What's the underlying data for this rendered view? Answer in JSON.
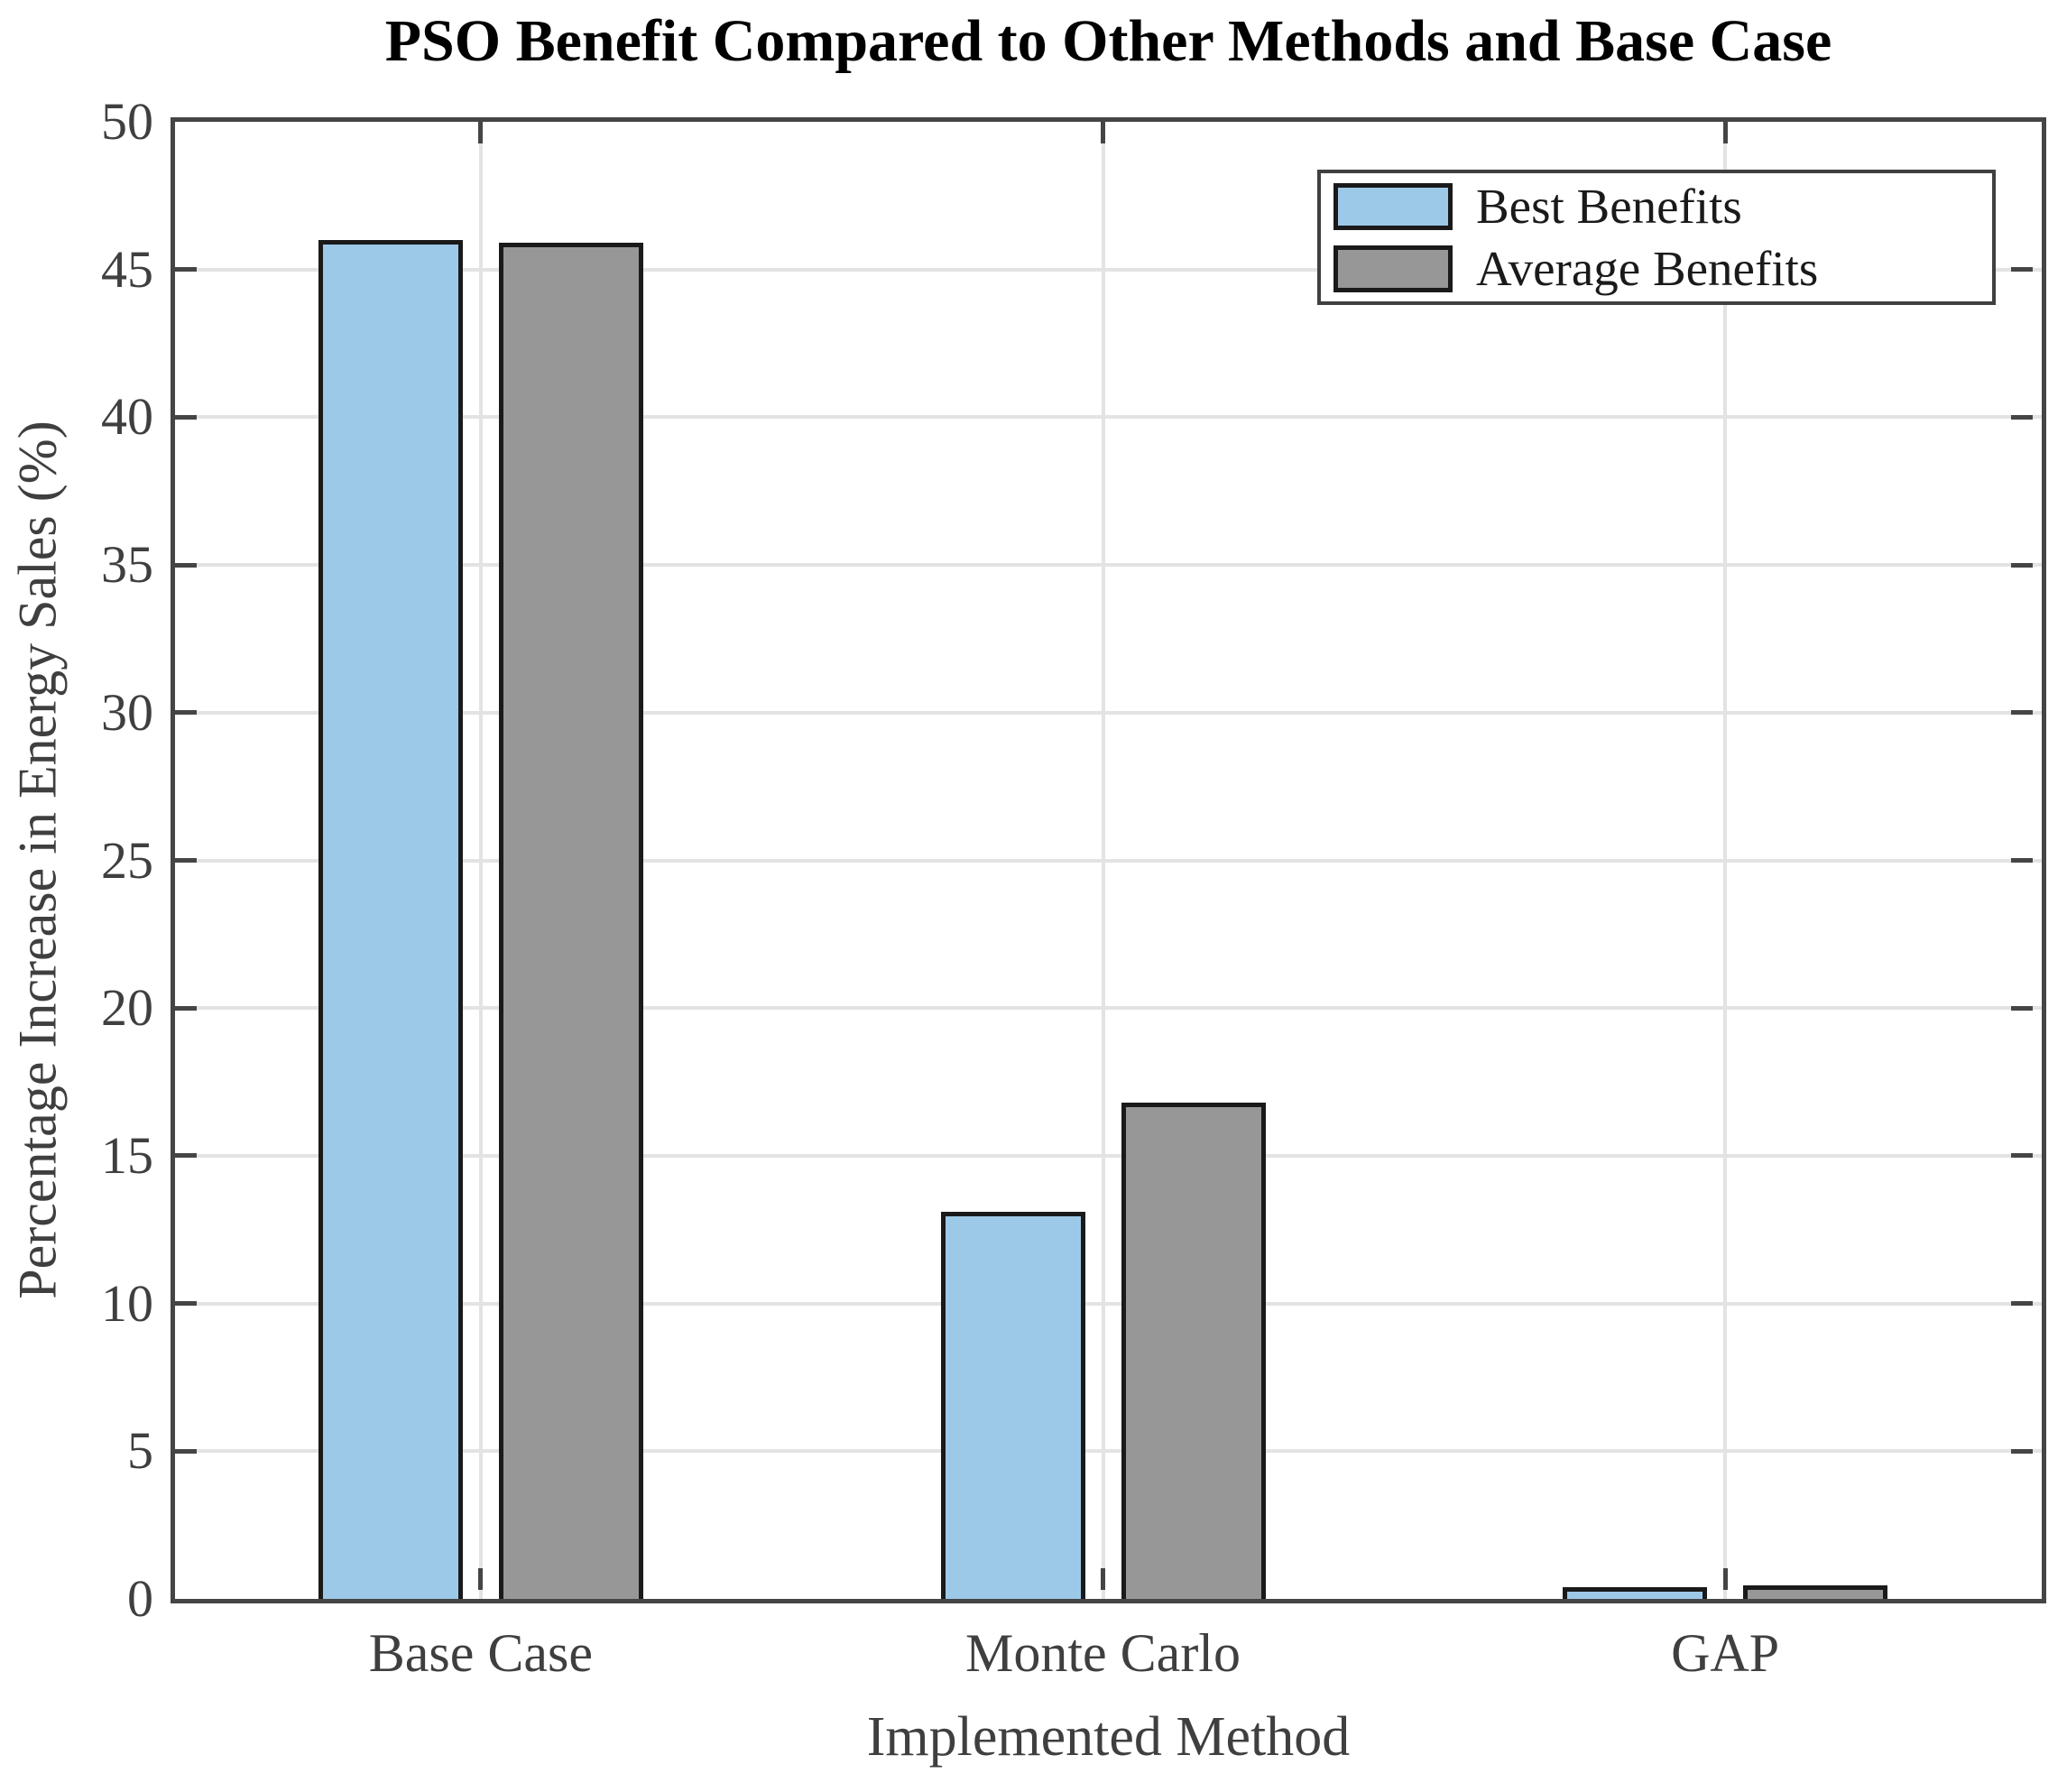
{
  "figure": {
    "title": "PSO Benefit Compared to Other Methods and Base Case",
    "xlabel": "Implemented Method",
    "ylabel": "Percentage Increase in Energy Sales (%)"
  },
  "legend": {
    "items": [
      {
        "label": "Best Benefits",
        "color": "#9DC9E9"
      },
      {
        "label": "Average Benefits",
        "color": "#979797"
      }
    ]
  },
  "axes": {
    "ytick_labels": [
      "0",
      "5",
      "10",
      "15",
      "20",
      "25",
      "30",
      "35",
      "40",
      "45",
      "50"
    ],
    "xtick_labels": [
      "Base Case",
      "Monte Carlo",
      "GAP"
    ]
  },
  "chart_data": {
    "type": "bar",
    "title": "PSO Benefit Compared to Other Methods and Base Case",
    "xlabel": "Implemented Method",
    "ylabel": "Percentage Increase in Energy Sales (%)",
    "categories": [
      "Base Case",
      "Monte Carlo",
      "GAP"
    ],
    "series": [
      {
        "name": "Best Benefits",
        "color": "#9DC9E9",
        "values": [
          46.0,
          13.1,
          0.4
        ]
      },
      {
        "name": "Average Benefits",
        "color": "#979797",
        "values": [
          45.9,
          16.8,
          0.45
        ]
      }
    ],
    "ylim": [
      0,
      50
    ],
    "ytick_step": 5,
    "grid": true,
    "grid_color": "#E3E3E3",
    "axis_color": "#454545",
    "bar_edge_color": "#1A1A1A",
    "legend_position": "top-right"
  }
}
